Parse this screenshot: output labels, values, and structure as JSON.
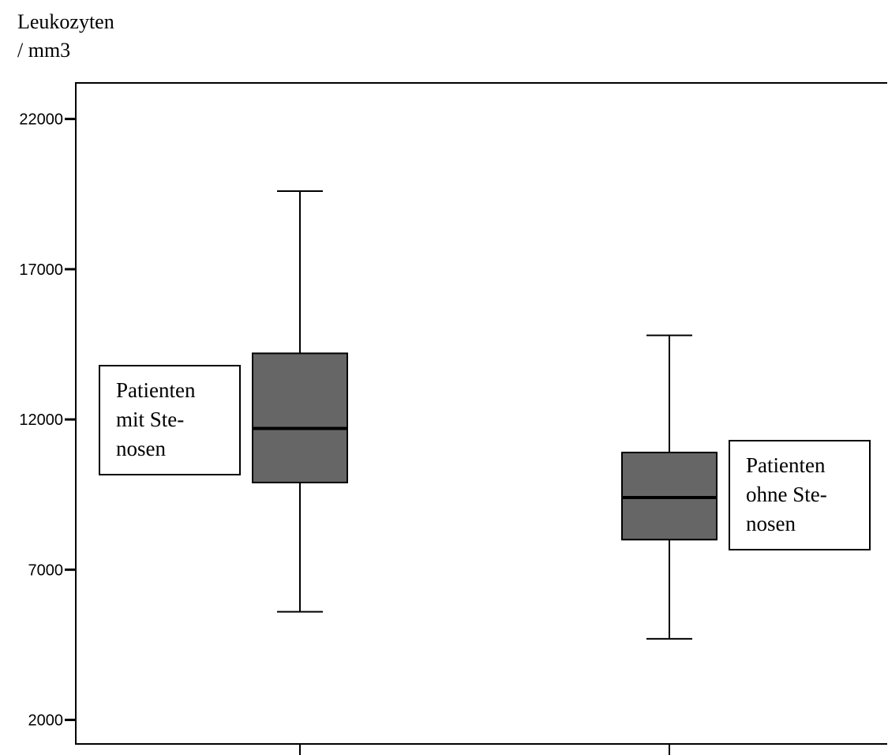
{
  "chart_data": {
    "type": "box",
    "ylabel_lines": [
      "Leukozyten",
      "/ mm3"
    ],
    "ylim": [
      1200,
      23200
    ],
    "yticks": [
      2000,
      7000,
      12000,
      17000,
      22000
    ],
    "grid": false,
    "colors": {
      "box": "#666666",
      "median": "#000000",
      "frame": "#000000"
    },
    "boxes": [
      {
        "whisker_low": 5600,
        "q1": 9900,
        "median": 11700,
        "q3": 14200,
        "whisker_high": 19600,
        "annotation_lines": [
          "Patienten",
          "mit Ste-",
          "nosen"
        ],
        "annotation_side": "left"
      },
      {
        "whisker_low": 4700,
        "q1": 8000,
        "median": 9400,
        "q3": 10900,
        "whisker_high": 14800,
        "annotation_lines": [
          "Patienten",
          "ohne Ste-",
          "nosen"
        ],
        "annotation_side": "right"
      }
    ]
  }
}
